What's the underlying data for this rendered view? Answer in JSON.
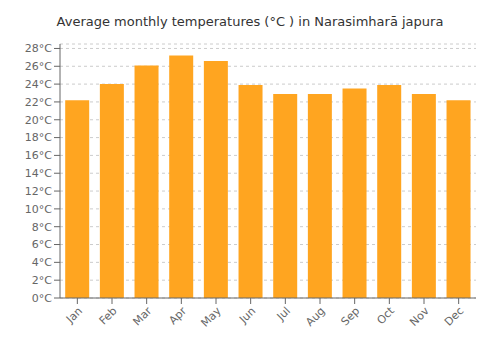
{
  "chart_data": {
    "type": "bar",
    "title": "Average monthly temperatures (°C ) in Narasimharā japura",
    "categories": [
      "Jan",
      "Feb",
      "Mar",
      "Apr",
      "May",
      "Jun",
      "Jul",
      "Aug",
      "Sep",
      "Oct",
      "Nov",
      "Dec"
    ],
    "values": [
      22.2,
      24.0,
      26.1,
      27.2,
      26.6,
      23.9,
      22.9,
      22.9,
      23.5,
      23.9,
      22.9,
      22.2
    ],
    "color": "#FFA520",
    "ylim": [
      0,
      28.5
    ],
    "yticks": [
      {
        "value": 0,
        "label": "0°C"
      },
      {
        "value": 2,
        "label": "2°C"
      },
      {
        "value": 4,
        "label": "4°C"
      },
      {
        "value": 6,
        "label": "6°C"
      },
      {
        "value": 8,
        "label": "8°C"
      },
      {
        "value": 10,
        "label": "10°C"
      },
      {
        "value": 12,
        "label": "12°C"
      },
      {
        "value": 14,
        "label": "14°C"
      },
      {
        "value": 16,
        "label": "16°C"
      },
      {
        "value": 18,
        "label": "18°C"
      },
      {
        "value": 20,
        "label": "20°C"
      },
      {
        "value": 22,
        "label": "22°C"
      },
      {
        "value": 24,
        "label": "24°C"
      },
      {
        "value": 26,
        "label": "26°C"
      },
      {
        "value": 28,
        "label": "28°C"
      }
    ],
    "grid": true
  }
}
